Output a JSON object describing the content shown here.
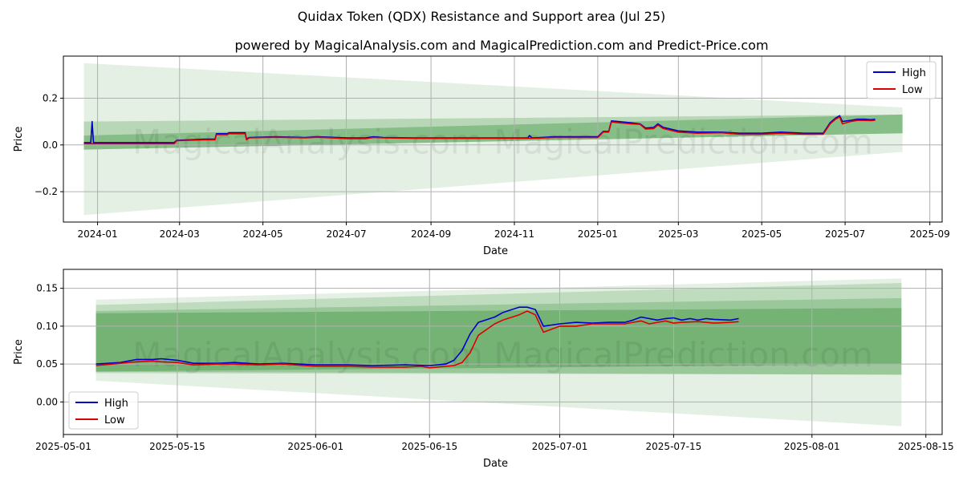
{
  "figure": {
    "title": "Quidax Token (QDX) Resistance and Support area (Jul 25)",
    "subtitle": "powered by MagicalAnalysis.com and MagicalPrediction.com and Predict-Price.com",
    "watermark": "MagicalAnalysis.com   MagicalPrediction.com"
  },
  "colors": {
    "high": "#0000cc",
    "low": "#dd0000",
    "band": "#2e8b2e",
    "grid": "#b0b0b0"
  },
  "chart_data": [
    {
      "type": "line",
      "xlabel": "Date",
      "ylabel": "Price",
      "xlim": [
        "2023-12-07",
        "2025-09-10"
      ],
      "ylim": [
        -0.33,
        0.38
      ],
      "x_ticks": [
        "2024-01",
        "2024-03",
        "2024-05",
        "2024-07",
        "2024-09",
        "2024-11",
        "2025-01",
        "2025-03",
        "2025-05",
        "2025-07",
        "2025-09"
      ],
      "y_ticks": [
        -0.2,
        0.0,
        0.2
      ],
      "y_tick_labels": [
        "−0.2",
        "0.0",
        "0.2"
      ],
      "grid": true,
      "legend": "top-right",
      "bands": [
        {
          "x": [
            "2023-12-22",
            "2025-08-12"
          ],
          "upper": [
            0.35,
            0.16
          ],
          "lower": [
            -0.3,
            -0.03
          ],
          "opacity": 0.13
        },
        {
          "x": [
            "2023-12-22",
            "2025-08-12"
          ],
          "upper": [
            0.1,
            0.13
          ],
          "lower": [
            -0.02,
            0.05
          ],
          "opacity": 0.25
        },
        {
          "x": [
            "2023-12-22",
            "2025-08-12"
          ],
          "upper": [
            0.04,
            0.13
          ],
          "lower": [
            -0.02,
            0.05
          ],
          "opacity": 0.35
        }
      ],
      "series": [
        {
          "name": "High",
          "x": [
            "2023-12-22",
            "2023-12-27",
            "2023-12-28",
            "2023-12-29",
            "2024-01-15",
            "2024-02-26",
            "2024-02-28",
            "2024-03-20",
            "2024-03-27",
            "2024-03-28",
            "2024-04-05",
            "2024-04-06",
            "2024-04-18",
            "2024-04-19",
            "2024-04-21",
            "2024-05-10",
            "2024-06-01",
            "2024-06-10",
            "2024-07-02",
            "2024-07-15",
            "2024-07-21",
            "2024-07-28",
            "2024-08-20",
            "2024-09-15",
            "2024-10-10",
            "2024-11-05",
            "2024-11-11",
            "2024-11-12",
            "2024-11-14",
            "2024-12-01",
            "2024-12-28",
            "2025-01-01",
            "2025-01-05",
            "2025-01-09",
            "2025-01-11",
            "2025-01-16",
            "2025-01-25",
            "2025-02-01",
            "2025-02-05",
            "2025-02-11",
            "2025-02-14",
            "2025-02-18",
            "2025-03-01",
            "2025-03-15",
            "2025-04-01",
            "2025-04-15",
            "2025-05-01",
            "2025-05-15",
            "2025-06-01",
            "2025-06-15",
            "2025-06-20",
            "2025-06-24",
            "2025-06-27",
            "2025-06-29",
            "2025-07-05",
            "2025-07-10",
            "2025-07-15",
            "2025-07-20",
            "2025-07-23"
          ],
          "y": [
            0.01,
            0.01,
            0.1,
            0.01,
            0.01,
            0.01,
            0.02,
            0.025,
            0.025,
            0.048,
            0.048,
            0.052,
            0.052,
            0.025,
            0.032,
            0.035,
            0.032,
            0.035,
            0.03,
            0.03,
            0.035,
            0.032,
            0.03,
            0.03,
            0.03,
            0.03,
            0.03,
            0.04,
            0.03,
            0.035,
            0.035,
            0.035,
            0.058,
            0.058,
            0.103,
            0.1,
            0.095,
            0.09,
            0.072,
            0.075,
            0.09,
            0.075,
            0.06,
            0.055,
            0.055,
            0.05,
            0.05,
            0.055,
            0.05,
            0.05,
            0.095,
            0.115,
            0.125,
            0.1,
            0.105,
            0.11,
            0.11,
            0.108,
            0.11
          ]
        },
        {
          "name": "Low",
          "x": [
            "2023-12-22",
            "2024-01-15",
            "2024-02-26",
            "2024-02-28",
            "2024-03-20",
            "2024-03-27",
            "2024-03-28",
            "2024-04-05",
            "2024-04-06",
            "2024-04-18",
            "2024-04-19",
            "2024-04-21",
            "2024-05-10",
            "2024-06-01",
            "2024-06-10",
            "2024-07-02",
            "2024-07-15",
            "2024-07-21",
            "2024-07-28",
            "2024-08-20",
            "2024-09-15",
            "2024-10-10",
            "2024-11-05",
            "2024-11-11",
            "2024-11-14",
            "2024-12-01",
            "2024-12-28",
            "2025-01-01",
            "2025-01-05",
            "2025-01-09",
            "2025-01-11",
            "2025-01-16",
            "2025-01-25",
            "2025-02-01",
            "2025-02-05",
            "2025-02-11",
            "2025-02-14",
            "2025-02-18",
            "2025-03-01",
            "2025-03-15",
            "2025-04-01",
            "2025-04-15",
            "2025-05-01",
            "2025-05-15",
            "2025-06-01",
            "2025-06-15",
            "2025-06-20",
            "2025-06-24",
            "2025-06-27",
            "2025-06-29",
            "2025-07-05",
            "2025-07-10",
            "2025-07-15",
            "2025-07-20",
            "2025-07-23"
          ],
          "y": [
            0.005,
            0.005,
            0.005,
            0.018,
            0.022,
            0.022,
            0.044,
            0.044,
            0.048,
            0.048,
            0.022,
            0.03,
            0.033,
            0.03,
            0.033,
            0.027,
            0.027,
            0.032,
            0.03,
            0.028,
            0.028,
            0.028,
            0.028,
            0.028,
            0.028,
            0.032,
            0.032,
            0.032,
            0.055,
            0.055,
            0.098,
            0.095,
            0.09,
            0.088,
            0.068,
            0.07,
            0.085,
            0.07,
            0.055,
            0.05,
            0.052,
            0.046,
            0.046,
            0.05,
            0.046,
            0.046,
            0.09,
            0.11,
            0.12,
            0.09,
            0.1,
            0.105,
            0.105,
            0.104,
            0.106
          ]
        }
      ]
    },
    {
      "type": "line",
      "xlabel": "Date",
      "ylabel": "Price",
      "xlim": [
        "2025-05-01",
        "2025-08-17"
      ],
      "ylim": [
        -0.043,
        0.175
      ],
      "x_ticks": [
        "2025-05-01",
        "2025-05-15",
        "2025-06-01",
        "2025-06-15",
        "2025-07-01",
        "2025-07-15",
        "2025-08-01",
        "2025-08-15"
      ],
      "y_ticks": [
        0.0,
        0.05,
        0.1,
        0.15
      ],
      "y_tick_labels": [
        "0.00",
        "0.05",
        "0.10",
        "0.15"
      ],
      "grid": true,
      "legend": "bottom-left",
      "bands": [
        {
          "x": [
            "2025-05-05",
            "2025-08-12"
          ],
          "upper": [
            0.135,
            0.163
          ],
          "lower": [
            0.028,
            -0.032
          ],
          "opacity": 0.13
        },
        {
          "x": [
            "2025-05-05",
            "2025-08-12"
          ],
          "upper": [
            0.128,
            0.157
          ],
          "lower": [
            0.038,
            0.036
          ],
          "opacity": 0.2
        },
        {
          "x": [
            "2025-05-05",
            "2025-08-12"
          ],
          "upper": [
            0.12,
            0.137
          ],
          "lower": [
            0.04,
            0.036
          ],
          "opacity": 0.25
        },
        {
          "x": [
            "2025-05-05",
            "2025-08-12"
          ],
          "upper": [
            0.117,
            0.124
          ],
          "lower": [
            0.04,
            0.05
          ],
          "opacity": 0.35
        }
      ],
      "series": [
        {
          "name": "High",
          "x": [
            "2025-05-05",
            "2025-05-08",
            "2025-05-10",
            "2025-05-12",
            "2025-05-13",
            "2025-05-15",
            "2025-05-17",
            "2025-05-20",
            "2025-05-22",
            "2025-05-25",
            "2025-05-28",
            "2025-06-01",
            "2025-06-05",
            "2025-06-08",
            "2025-06-12",
            "2025-06-15",
            "2025-06-17",
            "2025-06-18",
            "2025-06-19",
            "2025-06-20",
            "2025-06-21",
            "2025-06-23",
            "2025-06-24",
            "2025-06-26",
            "2025-06-27",
            "2025-06-28",
            "2025-06-29",
            "2025-07-01",
            "2025-07-03",
            "2025-07-05",
            "2025-07-07",
            "2025-07-09",
            "2025-07-10",
            "2025-07-11",
            "2025-07-13",
            "2025-07-14",
            "2025-07-15",
            "2025-07-16",
            "2025-07-17",
            "2025-07-18",
            "2025-07-19",
            "2025-07-20",
            "2025-07-22",
            "2025-07-23"
          ],
          "y": [
            0.05,
            0.052,
            0.056,
            0.056,
            0.057,
            0.055,
            0.051,
            0.051,
            0.052,
            0.05,
            0.051,
            0.049,
            0.049,
            0.048,
            0.049,
            0.048,
            0.05,
            0.055,
            0.068,
            0.09,
            0.105,
            0.112,
            0.118,
            0.125,
            0.125,
            0.122,
            0.1,
            0.103,
            0.105,
            0.104,
            0.105,
            0.105,
            0.108,
            0.112,
            0.108,
            0.11,
            0.111,
            0.108,
            0.11,
            0.108,
            0.11,
            0.109,
            0.108,
            0.11
          ]
        },
        {
          "name": "Low",
          "x": [
            "2025-05-05",
            "2025-05-08",
            "2025-05-10",
            "2025-05-12",
            "2025-05-13",
            "2025-05-15",
            "2025-05-17",
            "2025-05-20",
            "2025-05-22",
            "2025-05-25",
            "2025-05-28",
            "2025-06-01",
            "2025-06-05",
            "2025-06-08",
            "2025-06-12",
            "2025-06-14",
            "2025-06-15",
            "2025-06-17",
            "2025-06-18",
            "2025-06-19",
            "2025-06-20",
            "2025-06-21",
            "2025-06-23",
            "2025-06-24",
            "2025-06-26",
            "2025-06-27",
            "2025-06-28",
            "2025-06-29",
            "2025-07-01",
            "2025-07-03",
            "2025-07-05",
            "2025-07-07",
            "2025-07-09",
            "2025-07-10",
            "2025-07-11",
            "2025-07-12",
            "2025-07-14",
            "2025-07-15",
            "2025-07-16",
            "2025-07-18",
            "2025-07-20",
            "2025-07-22",
            "2025-07-23"
          ],
          "y": [
            0.048,
            0.051,
            0.053,
            0.054,
            0.053,
            0.052,
            0.049,
            0.05,
            0.05,
            0.049,
            0.05,
            0.047,
            0.047,
            0.046,
            0.046,
            0.047,
            0.045,
            0.047,
            0.048,
            0.052,
            0.065,
            0.088,
            0.103,
            0.108,
            0.115,
            0.12,
            0.115,
            0.092,
            0.1,
            0.1,
            0.103,
            0.103,
            0.103,
            0.105,
            0.107,
            0.103,
            0.107,
            0.104,
            0.105,
            0.106,
            0.104,
            0.105,
            0.106
          ]
        }
      ]
    }
  ]
}
